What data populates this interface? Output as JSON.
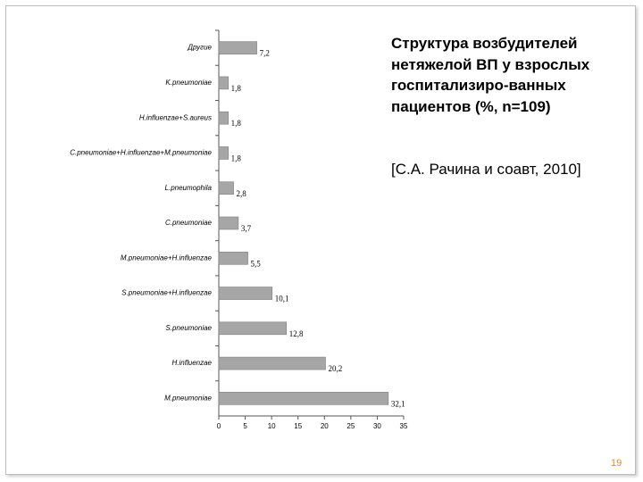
{
  "chart_data": {
    "type": "hbar",
    "title": "Структура возбудителей нетяжелой ВП у взрослых госпитализиро-ванных пациентов (%, n=109)",
    "subtitle": "[С.А. Рачина и соавт, 2010]",
    "categories": [
      "Другие",
      "K.pneumoniae",
      "H.influenzae+S.aureus",
      "C.pneumoniae+H.influenzae+M.pneumoniae",
      "L.pneumophila",
      "C.pneumoniae",
      "M.pneumoniae+H.influenzae",
      "S.pneumoniae+H.influenzae",
      "S.pneumoniae",
      "H.influenzae",
      "M.pneumoniae"
    ],
    "values": [
      7.2,
      1.8,
      1.8,
      1.8,
      2.8,
      3.7,
      5.5,
      10.1,
      12.8,
      20.2,
      32.1
    ],
    "value_labels": [
      "7,2",
      "1,8",
      "1,8",
      "1,8",
      "2,8",
      "3,7",
      "5,5",
      "10,1",
      "12,8",
      "20,2",
      "32,1"
    ],
    "color": "#a6a6a6",
    "xlim": [
      0,
      35
    ],
    "xticks": [
      0,
      5,
      10,
      15,
      20,
      25,
      30,
      35
    ]
  },
  "slide": {
    "page_number": "19"
  }
}
